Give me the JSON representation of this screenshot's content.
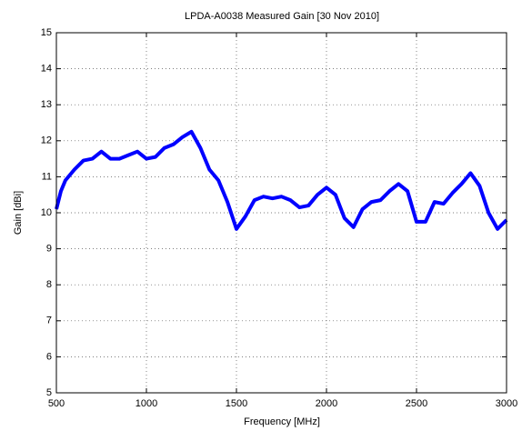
{
  "chart_data": {
    "type": "line",
    "title": "LPDA-A0038 Measured Gain [30 Nov 2010]",
    "xlabel": "Frequency [MHz]",
    "ylabel": "Gain [dBi]",
    "x": [
      500,
      525,
      550,
      600,
      650,
      700,
      750,
      800,
      850,
      900,
      950,
      1000,
      1050,
      1100,
      1150,
      1200,
      1250,
      1300,
      1350,
      1400,
      1450,
      1500,
      1550,
      1600,
      1650,
      1700,
      1750,
      1800,
      1850,
      1900,
      1950,
      2000,
      2050,
      2100,
      2150,
      2200,
      2250,
      2300,
      2350,
      2400,
      2450,
      2500,
      2550,
      2600,
      2650,
      2700,
      2750,
      2800,
      2850,
      2900,
      2950,
      3000
    ],
    "series": [
      {
        "name": "Gain",
        "color": "#0000ff",
        "values": [
          10.1,
          10.6,
          10.9,
          11.2,
          11.45,
          11.5,
          11.7,
          11.5,
          11.5,
          11.6,
          11.7,
          11.5,
          11.55,
          11.8,
          11.9,
          12.1,
          12.25,
          11.8,
          11.2,
          10.9,
          10.3,
          9.55,
          9.9,
          10.35,
          10.45,
          10.4,
          10.45,
          10.35,
          10.15,
          10.2,
          10.5,
          10.7,
          10.5,
          9.85,
          9.6,
          10.1,
          10.3,
          10.35,
          10.6,
          10.8,
          10.6,
          9.75,
          9.75,
          10.3,
          10.25,
          10.55,
          10.8,
          11.1,
          10.75,
          10.0,
          9.55,
          9.8
        ]
      }
    ],
    "xlim": [
      500,
      3000
    ],
    "xticks": [
      500,
      1000,
      1500,
      2000,
      2500,
      3000
    ],
    "ylim": [
      5,
      15
    ],
    "yticks": [
      5,
      6,
      7,
      8,
      9,
      10,
      11,
      12,
      13,
      14,
      15
    ],
    "grid": true
  }
}
